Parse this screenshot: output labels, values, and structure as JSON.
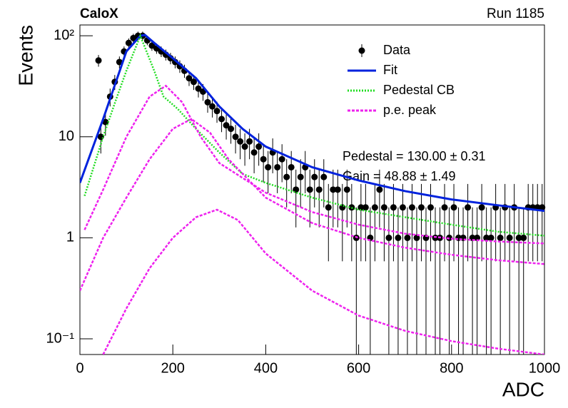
{
  "chart_data": {
    "type": "line",
    "title": "CaloX",
    "subtitle": "Run 1185",
    "x_label": "ADC",
    "y_label": "Events",
    "log_y": true,
    "xlim": [
      0,
      1000
    ],
    "ylim": [
      0.07,
      128
    ],
    "xticks": [
      0,
      200,
      400,
      600,
      800,
      1000
    ],
    "yticks": [
      {
        "value": 0.1,
        "label": "10⁻¹"
      },
      1,
      10,
      {
        "value": 100,
        "label": "10²"
      }
    ],
    "legend": "top-right",
    "annotations": [
      "Pedestal = 130.00 ± 0.31",
      "Gain = 48.88 ± 1.49"
    ],
    "series": [
      {
        "name": "Data",
        "type": "scatter",
        "color": "#000000",
        "x": [
          40,
          45,
          55,
          65,
          75,
          85,
          95,
          105,
          115,
          125,
          135,
          145,
          155,
          165,
          175,
          185,
          195,
          205,
          215,
          225,
          235,
          245,
          255,
          265,
          275,
          285,
          295,
          305,
          315,
          325,
          335,
          345,
          355,
          365,
          375,
          385,
          395,
          405,
          415,
          425,
          435,
          445,
          455,
          465,
          475,
          485,
          495,
          505,
          515,
          525,
          535,
          545,
          555,
          565,
          575,
          585,
          595,
          605,
          615,
          625,
          635,
          645,
          655,
          665,
          675,
          685,
          695,
          705,
          715,
          725,
          735,
          745,
          755,
          765,
          775,
          785,
          795,
          805,
          815,
          825,
          835,
          845,
          855,
          865,
          875,
          885,
          895,
          905,
          915,
          925,
          935,
          945,
          955,
          965,
          975,
          985,
          995
        ],
        "values": [
          57,
          10,
          14,
          25,
          35,
          55,
          70,
          85,
          95,
          100,
          100,
          90,
          80,
          75,
          70,
          65,
          60,
          55,
          50,
          45,
          38,
          35,
          30,
          28,
          22,
          20,
          18,
          15,
          13,
          12,
          10,
          9,
          8,
          9,
          7,
          8,
          6,
          5,
          7,
          5,
          6,
          4,
          5,
          3,
          4,
          5,
          3,
          4,
          3,
          4,
          2,
          3,
          3,
          2,
          3,
          2,
          1,
          2,
          2,
          1,
          2,
          3,
          2,
          1,
          2,
          1,
          2,
          1,
          2,
          1,
          2,
          1,
          2,
          1,
          1,
          2,
          1,
          2,
          1,
          1,
          2,
          1,
          1,
          2,
          1,
          1,
          2,
          1,
          2,
          1,
          2,
          1,
          1,
          2,
          2,
          2,
          2
        ]
      },
      {
        "name": "Fit",
        "type": "line",
        "color": "#0022dd",
        "dash": "solid",
        "x": [
          0,
          50,
          100,
          130,
          140,
          160,
          200,
          250,
          300,
          350,
          400,
          500,
          600,
          700,
          800,
          900,
          1000
        ],
        "values": [
          3.5,
          15,
          70,
          100,
          102,
          85,
          60,
          38,
          20,
          12,
          8,
          5,
          3.7,
          2.9,
          2.4,
          2.1,
          1.85
        ]
      },
      {
        "name": "Pedestal CB",
        "type": "line",
        "color": "#22dd22",
        "dash": "dotted",
        "x": [
          10,
          50,
          80,
          100,
          130,
          160,
          180,
          210,
          250,
          300,
          350,
          400,
          500,
          600,
          700,
          800,
          900,
          1000
        ],
        "values": [
          2.6,
          10,
          25,
          45,
          100,
          45,
          25,
          19,
          12,
          7,
          4.3,
          3.5,
          2.5,
          1.9,
          1.6,
          1.35,
          1.15,
          1.05
        ]
      },
      {
        "name": "p.e. peak",
        "type": "line",
        "color": "#ee22ee",
        "dash": "dashed",
        "x": [
          10,
          50,
          100,
          150,
          185,
          220,
          260,
          300,
          400,
          500,
          600,
          700,
          800,
          900,
          1000
        ],
        "values": [
          1.2,
          3,
          10,
          25,
          32,
          22,
          10,
          5.5,
          2.8,
          1.8,
          1.35,
          1.1,
          0.98,
          0.92,
          0.88
        ]
      },
      {
        "type": "line",
        "color": "#ee22ee",
        "dash": "dashed",
        "x": [
          0,
          50,
          100,
          150,
          200,
          240,
          280,
          320,
          400,
          500,
          600,
          700,
          800,
          900,
          1000
        ],
        "values": [
          0.3,
          1,
          2.5,
          6,
          12,
          15,
          11,
          6,
          2.5,
          1.4,
          1,
          0.8,
          0.68,
          0.6,
          0.55
        ]
      },
      {
        "type": "line",
        "color": "#ee22ee",
        "dash": "dashed",
        "x": [
          50,
          100,
          150,
          200,
          250,
          295,
          340,
          400,
          500,
          600,
          700,
          800,
          900,
          1000
        ],
        "values": [
          0.07,
          0.2,
          0.5,
          1,
          1.6,
          1.9,
          1.5,
          0.7,
          0.3,
          0.17,
          0.12,
          0.095,
          0.08,
          0.07
        ]
      }
    ]
  }
}
